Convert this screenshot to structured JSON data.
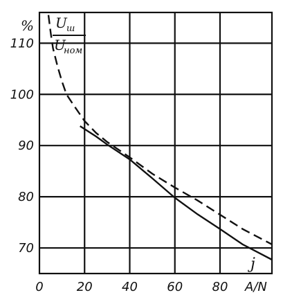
{
  "chart_data": {
    "type": "line",
    "y_unit": "%",
    "ratio_numerator": "U",
    "ratio_numerator_sub": "ш",
    "ratio_denominator": "U",
    "ratio_denominator_sub": "ном",
    "x_unit": "A/N",
    "curve_label": "j",
    "x_ticks": [
      "0",
      "20",
      "40",
      "60",
      "80"
    ],
    "y_ticks": [
      "70",
      "80",
      "90",
      "100",
      "110"
    ],
    "xlim": [
      0,
      103
    ],
    "ylim": [
      65,
      116
    ],
    "grid": true,
    "series": [
      {
        "style": "solid",
        "x": [
          18,
          25,
          30,
          40,
          50,
          60,
          70,
          80,
          90,
          103
        ],
        "y": [
          93.8,
          91.8,
          90.2,
          87.3,
          83.6,
          79.8,
          76.6,
          73.7,
          70.7,
          67.7
        ]
      },
      {
        "style": "dashed",
        "x": [
          4,
          5,
          6,
          8,
          10,
          12,
          15,
          20,
          25,
          30,
          40,
          50,
          60,
          70,
          80,
          90,
          103
        ],
        "y": [
          115.5,
          112,
          109,
          105.5,
          102.5,
          100,
          98,
          94.8,
          92.5,
          90.7,
          87.7,
          84.5,
          81.8,
          79.3,
          76.5,
          73.7,
          70.7
        ]
      }
    ]
  }
}
